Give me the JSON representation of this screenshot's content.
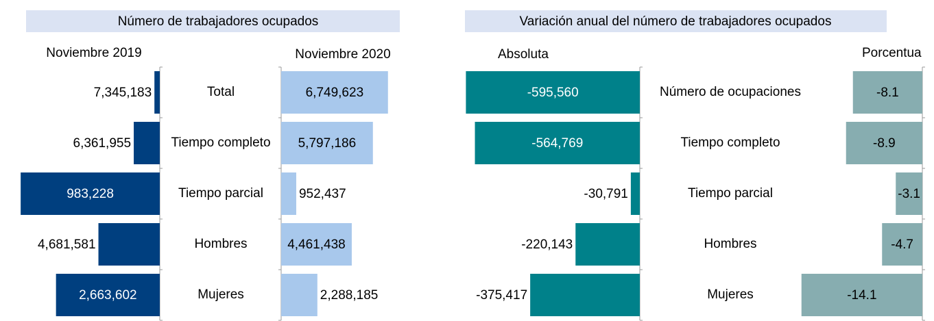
{
  "headers": [
    "Número de trabajadores ocupados",
    "Variación anual del número de trabajadores ocupados"
  ],
  "chart_data": [
    {
      "type": "bar",
      "title": "Noviembre 2019",
      "categories": [
        "Total",
        "Tiempo completo",
        "Tiempo parcial",
        "Hombres",
        "Mujeres"
      ],
      "values": [
        7345183,
        6361955,
        983228,
        4681581,
        2663602
      ],
      "value_labels": [
        "7,345,183",
        "6,361,955",
        "983,228",
        "4,681,581",
        "2,663,602"
      ],
      "color": "#003f7f",
      "xlim": [
        0,
        7600000
      ]
    },
    {
      "type": "bar",
      "title": "Noviembre 2020",
      "values": [
        6749623,
        5797186,
        952437,
        4461438,
        2288185
      ],
      "value_labels": [
        "6,749,623",
        "5,797,186",
        "952,437",
        "4,461,438",
        "2,288,185"
      ],
      "color": "#a8c8ec",
      "xlim": [
        0,
        7800000
      ]
    },
    {
      "type": "bar",
      "title": "Absoluta",
      "categories": [
        "Número de ocupaciones",
        "Tiempo completo",
        "Tiempo parcial",
        "Hombres",
        "Mujeres"
      ],
      "values": [
        -595560,
        -564769,
        -30791,
        -220143,
        -375417
      ],
      "value_labels": [
        "-595,560",
        "-564,769",
        "-30,791",
        "-220,143",
        "-375,417"
      ],
      "color": "#00818a",
      "xlim": [
        -620000,
        0
      ]
    },
    {
      "type": "bar",
      "title": "Porcentua",
      "values": [
        -8.1,
        -8.9,
        -3.1,
        -4.7,
        -14.1
      ],
      "color": "#87adb0",
      "xlim": [
        -15.6,
        0
      ]
    }
  ]
}
